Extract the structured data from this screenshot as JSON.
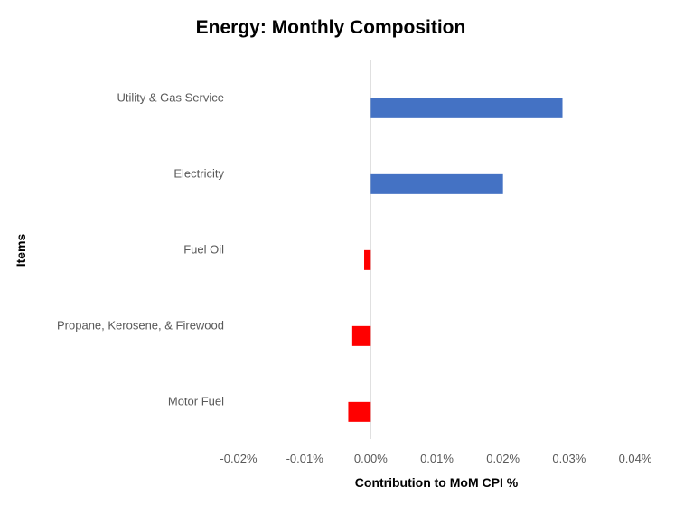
{
  "chart_data": {
    "type": "bar",
    "orientation": "horizontal",
    "title": "Energy: Monthly Composition",
    "xlabel": "Contribution to MoM CPI %",
    "ylabel": "Items",
    "categories": [
      "Utility & Gas Service",
      "Electricity",
      "Fuel Oil",
      "Propane, Kerosene, & Firewood",
      "Motor Fuel"
    ],
    "values": [
      0.029,
      0.02,
      -0.001,
      -0.0028,
      -0.0034
    ],
    "xlim": [
      -0.02,
      0.04
    ],
    "xticks": [
      -0.02,
      -0.01,
      0.0,
      0.01,
      0.02,
      0.03,
      0.04
    ],
    "xtick_labels": [
      "-0.02%",
      "-0.01%",
      "0.00%",
      "0.01%",
      "0.02%",
      "0.03%",
      "0.04%"
    ],
    "grid": false,
    "legend": "none",
    "colors": {
      "positive": "#4472C4",
      "negative": "#FF0000",
      "zero_line": "#D9D9D9"
    }
  }
}
